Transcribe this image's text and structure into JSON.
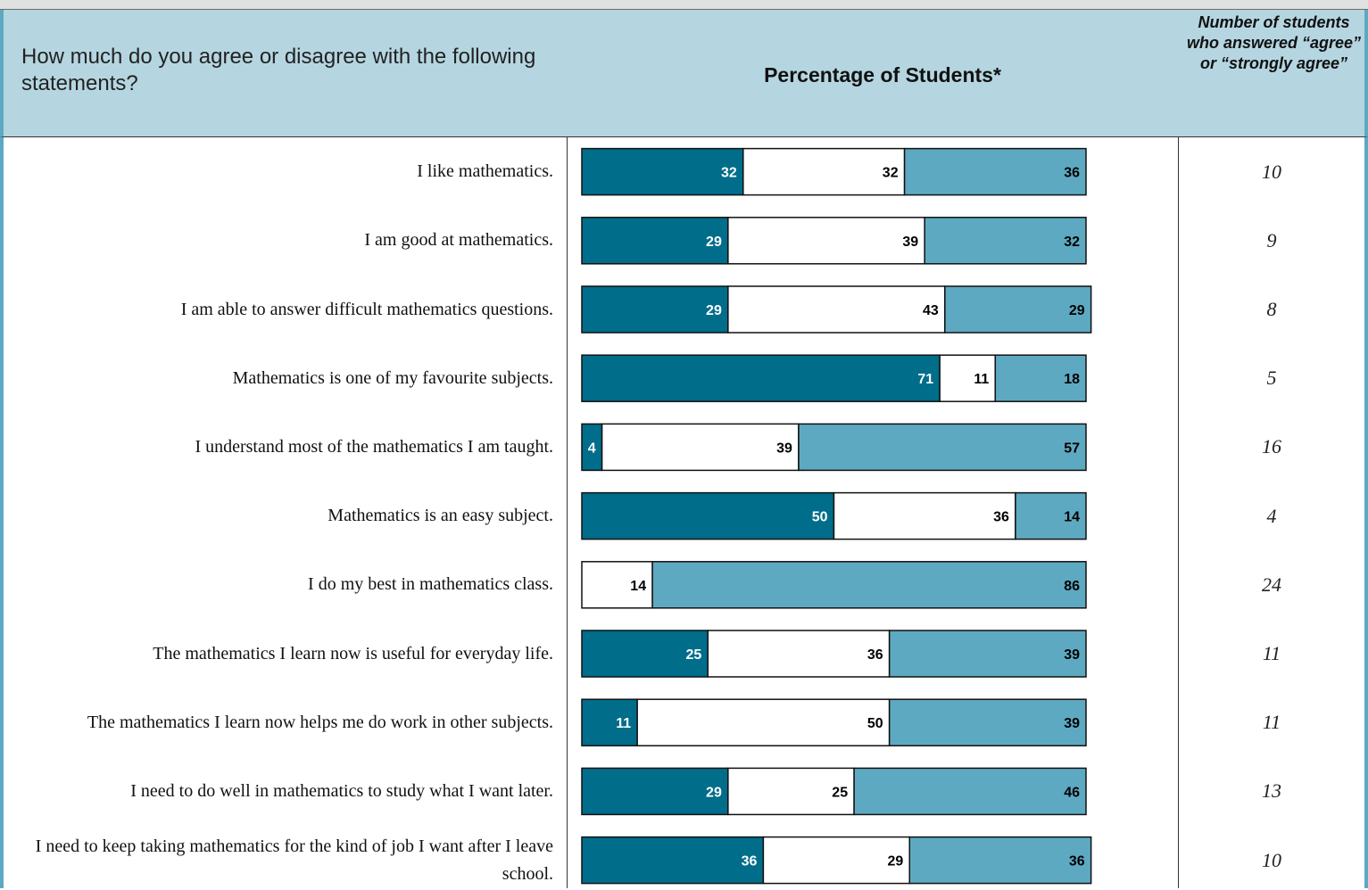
{
  "header": {
    "question": "How much do you agree or disagree with the following statements?",
    "percentage_title": "Percentage of Students*",
    "count_title": "Number of students who answered “agree” or “strongly agree”"
  },
  "colors": {
    "disagree": "#006d8b",
    "neutral": "#ffffff",
    "agree": "#5ea9c2",
    "header": "#b5d6e1",
    "border": "#5ea9c2"
  },
  "rows": [
    {
      "statement": "I like mathematics.",
      "count": "10"
    },
    {
      "statement": "I am good at mathematics.",
      "count": "9"
    },
    {
      "statement": "I am able to answer difficult mathematics questions.",
      "count": "8"
    },
    {
      "statement": "Mathematics is one of my favourite subjects.",
      "count": "5"
    },
    {
      "statement": "I understand most of the mathematics I am taught.",
      "count": "16"
    },
    {
      "statement": "Mathematics is an easy subject.",
      "count": "4"
    },
    {
      "statement": "I do my best in mathematics class.",
      "count": "24"
    },
    {
      "statement": "The mathematics I learn now is useful for everyday life.",
      "count": "11"
    },
    {
      "statement": "The mathematics I learn now helps me do work in other subjects.",
      "count": "11"
    },
    {
      "statement": "I need to do well in mathematics to study what I want later.",
      "count": "13"
    },
    {
      "statement": "I need to keep taking mathematics for the kind of job I want after I leave school.",
      "count": "10"
    }
  ],
  "chart_data": {
    "type": "bar",
    "stacked": true,
    "orientation": "horizontal",
    "title": "Percentage of Students*",
    "categories": [
      "I like mathematics.",
      "I am good at mathematics.",
      "I am able to answer difficult mathematics questions.",
      "Mathematics is one of my favourite subjects.",
      "I understand most of the mathematics I am taught.",
      "Mathematics is an easy subject.",
      "I do my best in mathematics class.",
      "The mathematics I learn now is useful for everyday life.",
      "The mathematics I learn now helps me do work in other subjects.",
      "I need to do well in mathematics to study what I want later.",
      "I need to keep taking mathematics for the kind of job I want after I leave school."
    ],
    "series": [
      {
        "values": [
          32,
          29,
          29,
          71,
          4,
          50,
          0,
          25,
          11,
          29,
          36
        ]
      },
      {
        "values": [
          32,
          39,
          43,
          11,
          39,
          36,
          14,
          36,
          50,
          25,
          29
        ]
      },
      {
        "values": [
          36,
          32,
          29,
          18,
          57,
          14,
          86,
          39,
          39,
          46,
          36
        ]
      }
    ],
    "xlim": [
      0,
      100
    ]
  }
}
